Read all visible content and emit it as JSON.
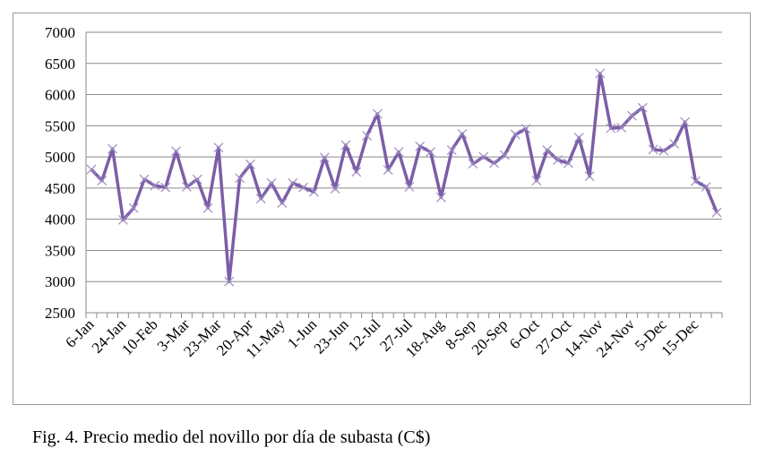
{
  "chart_data": {
    "type": "line",
    "x_tick_labels": [
      "6-Jan",
      "24-Jan",
      "10-Feb",
      "3-Mar",
      "23-Mar",
      "20-Apr",
      "11-May",
      "1-Jun",
      "23-Jun",
      "12-Jul",
      "27-Jul",
      "18-Aug",
      "8-Sep",
      "20-Sep",
      "6-Oct",
      "27-Oct",
      "14-Nov",
      "24-Nov",
      "5-Dec",
      "15-Dec"
    ],
    "y_ticks": [
      2500,
      3000,
      3500,
      4000,
      4500,
      5000,
      5500,
      6000,
      6500,
      7000
    ],
    "ylim": [
      2500,
      7000
    ],
    "grid": true,
    "legend": "none",
    "series_color": "#7B5EA7",
    "values": [
      4800,
      4620,
      5130,
      3990,
      4180,
      4640,
      4540,
      4510,
      5090,
      4520,
      4640,
      4180,
      5150,
      3000,
      4660,
      4880,
      4330,
      4580,
      4260,
      4580,
      4510,
      4440,
      4990,
      4490,
      5190,
      4760,
      5340,
      5690,
      4790,
      5080,
      4520,
      5170,
      5080,
      4350,
      5110,
      5370,
      4890,
      5000,
      4900,
      5030,
      5360,
      5450,
      4620,
      5110,
      4950,
      4900,
      5310,
      4690,
      6340,
      5460,
      5470,
      5660,
      5790,
      5120,
      5100,
      5210,
      5560,
      4610,
      4520,
      4110
    ],
    "tick_positions": [
      0,
      3,
      6,
      9,
      12,
      15,
      18,
      21,
      24,
      27,
      30,
      33,
      36,
      39,
      42,
      45,
      48,
      51,
      54,
      57
    ]
  },
  "caption": "Fig. 4. Precio medio del novillo por día de subasta (C$)"
}
